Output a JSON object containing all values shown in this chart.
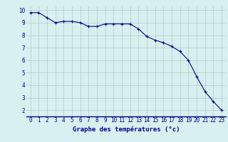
{
  "x": [
    0,
    1,
    2,
    3,
    4,
    5,
    6,
    7,
    8,
    9,
    10,
    11,
    12,
    13,
    14,
    15,
    16,
    17,
    18,
    19,
    20,
    21,
    22,
    23
  ],
  "y": [
    9.8,
    9.8,
    9.4,
    9.0,
    9.1,
    9.1,
    9.0,
    8.7,
    8.7,
    8.9,
    8.9,
    8.9,
    8.9,
    8.5,
    7.9,
    7.6,
    7.4,
    7.1,
    6.7,
    6.0,
    4.7,
    3.5,
    2.7,
    2.0
  ],
  "line_color": "#00008b",
  "marker": "+",
  "marker_size": 3,
  "line_width": 0.8,
  "background_color": "#d8f0f0",
  "grid_color": "#b0c8c8",
  "xlabel": "Graphe des températures (°c)",
  "xlabel_color": "#00008b",
  "xlabel_fontsize": 6.5,
  "tick_color": "#00008b",
  "tick_fontsize": 5.5,
  "ylim": [
    1.5,
    10.3
  ],
  "xlim": [
    -0.5,
    23.5
  ],
  "yticks": [
    2,
    3,
    4,
    5,
    6,
    7,
    8,
    9,
    10
  ],
  "xticks": [
    0,
    1,
    2,
    3,
    4,
    5,
    6,
    7,
    8,
    9,
    10,
    11,
    12,
    13,
    14,
    15,
    16,
    17,
    18,
    19,
    20,
    21,
    22,
    23
  ]
}
